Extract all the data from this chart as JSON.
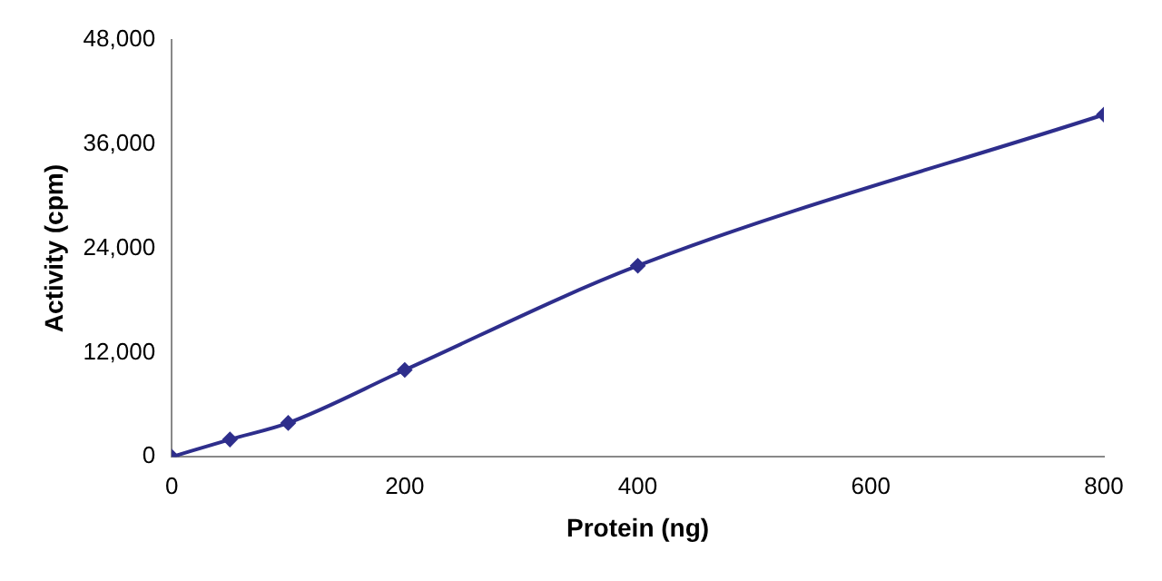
{
  "chart_data": {
    "type": "line",
    "xlabel": "Protein (ng)",
    "ylabel": "Activity (cpm)",
    "x": [
      0,
      50,
      100,
      200,
      400,
      800
    ],
    "series": [
      {
        "color": "#2e2e8c",
        "values": [
          0,
          2000,
          3900,
          10000,
          22000,
          39400
        ]
      }
    ],
    "xlim": [
      0,
      800
    ],
    "xticks": [
      0,
      200,
      400,
      600,
      800
    ],
    "ylim": [
      0,
      48000
    ],
    "yticks": [
      {
        "value": 0,
        "label": "0"
      },
      {
        "value": 12000,
        "label": "12,000"
      },
      {
        "value": 24000,
        "label": "24,000"
      },
      {
        "value": 36000,
        "label": "36,000"
      },
      {
        "value": 48000,
        "label": "48,000"
      }
    ],
    "marker": "diamond",
    "grid": false,
    "legend": false
  }
}
